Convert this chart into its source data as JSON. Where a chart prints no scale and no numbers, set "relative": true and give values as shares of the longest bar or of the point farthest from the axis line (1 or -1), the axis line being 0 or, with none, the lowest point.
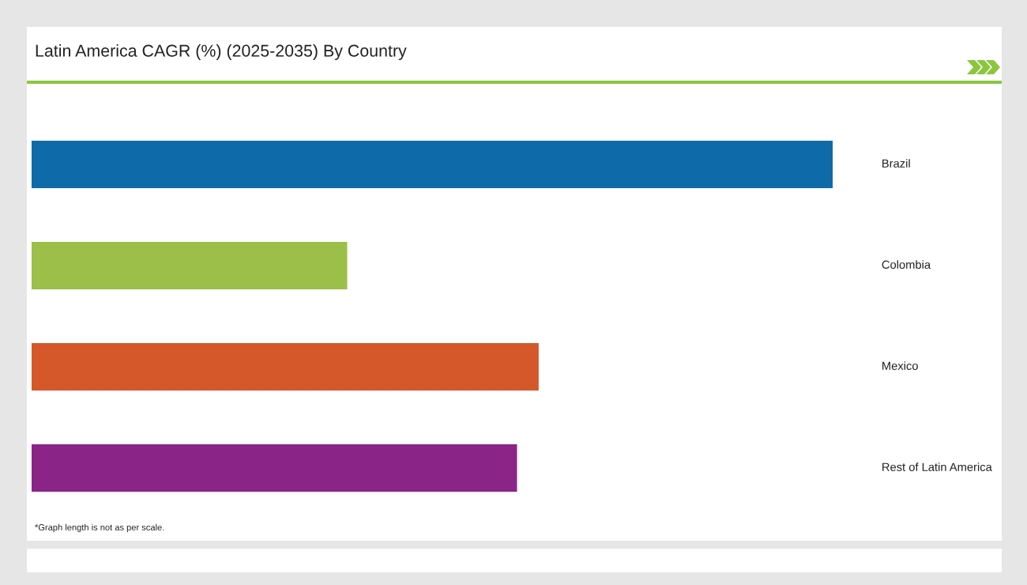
{
  "chart_data": {
    "type": "bar",
    "orientation": "horizontal",
    "relative": true,
    "title": "Latin America CAGR (%) (2025-2035) By Country",
    "categories": [
      "Brazil",
      "Colombia",
      "Mexico",
      "Rest of Latin America"
    ],
    "values": [
      1,
      0.394,
      0.633,
      0.606
    ],
    "colors": [
      "#0e6aa8",
      "#9bbf48",
      "#d4582a",
      "#8a2487"
    ],
    "annotations": [
      "*Graph length is not as per scale."
    ],
    "legend": false
  }
}
